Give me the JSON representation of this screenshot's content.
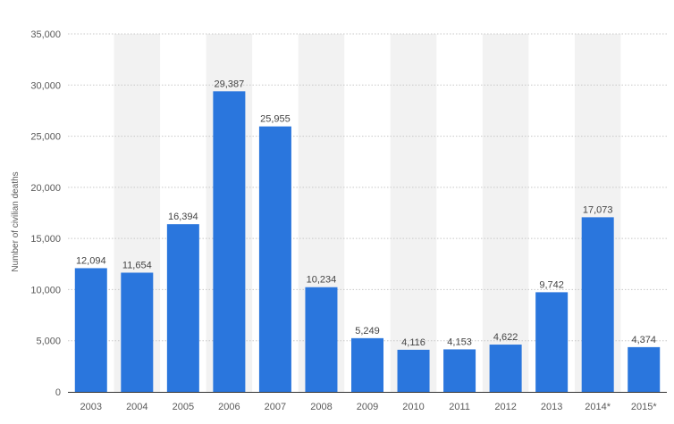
{
  "chart_data": {
    "type": "bar",
    "categories": [
      "2003",
      "2004",
      "2005",
      "2006",
      "2007",
      "2008",
      "2009",
      "2010",
      "2011",
      "2012",
      "2013",
      "2014*",
      "2015*"
    ],
    "values": [
      12094,
      11654,
      16394,
      29387,
      25955,
      10234,
      5249,
      4116,
      4153,
      4622,
      9742,
      17073,
      4374
    ],
    "value_labels": [
      "12,094",
      "11,654",
      "16,394",
      "29,387",
      "25,955",
      "10,234",
      "5,249",
      "4,116",
      "4,153",
      "4,622",
      "9,742",
      "17,073",
      "4,374"
    ],
    "ylabel": "Number of civilian deaths",
    "xlabel": "",
    "ylim": [
      0,
      35000
    ],
    "yticks": [
      0,
      5000,
      10000,
      15000,
      20000,
      25000,
      30000,
      35000
    ],
    "ytick_labels": [
      "0",
      "5,000",
      "10,000",
      "15,000",
      "20,000",
      "25,000",
      "30,000",
      "35,000"
    ],
    "grid": true,
    "colors": {
      "bar": "#2a76dd",
      "band": "#f2f2f2",
      "grid": "#c8c8c8",
      "axis": "#333333",
      "text": "#5a5a5a",
      "value_text": "#444444"
    }
  }
}
